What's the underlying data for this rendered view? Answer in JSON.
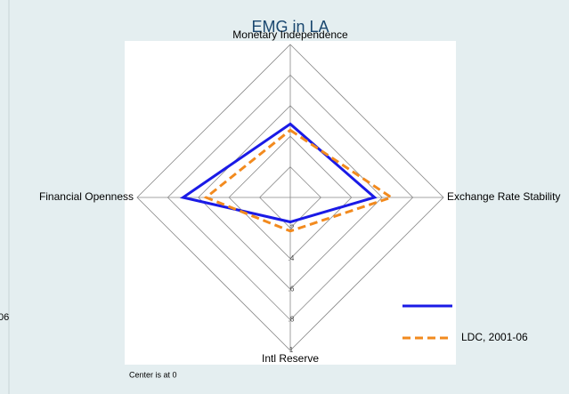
{
  "chart_data": {
    "type": "radar",
    "title": "EMG in LA",
    "categories": [
      "Monetary Independence",
      "Exchange Rate Stability",
      "Intl Reserve",
      "Financial Openness"
    ],
    "series": [
      {
        "color": "#1a1ae6",
        "dash": false,
        "values": [
          0.48,
          0.55,
          0.16,
          0.7
        ]
      },
      {
        "name": "LDC, 2001-06",
        "color": "#f28a1e",
        "dash": true,
        "values": [
          0.44,
          0.66,
          0.22,
          0.55
        ]
      }
    ],
    "rlim": [
      0,
      1
    ],
    "rticks": [
      {
        "value": 0.2,
        "label": ".2"
      },
      {
        "value": 0.4,
        "label": ".4"
      },
      {
        "value": 0.6,
        "label": ".6"
      },
      {
        "value": 0.8,
        "label": ".8"
      },
      1
    ],
    "grid": true,
    "note": "Center is at 0",
    "legend": "bottom-right",
    "fragment": "06"
  }
}
